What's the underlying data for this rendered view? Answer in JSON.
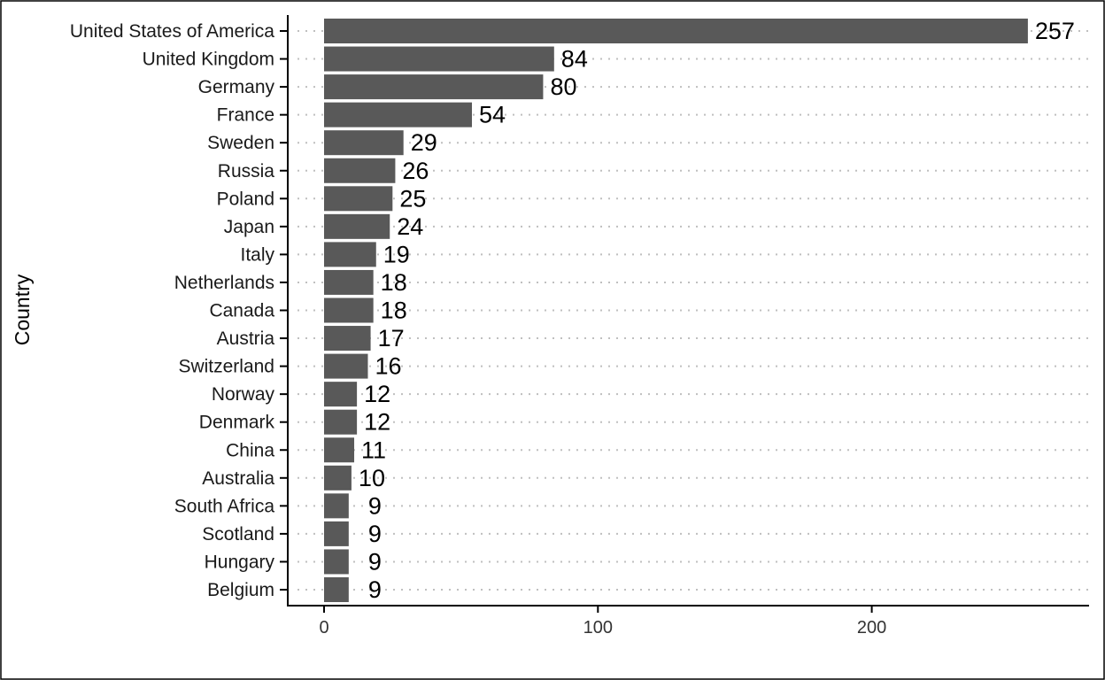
{
  "chart_data": {
    "type": "bar",
    "orientation": "horizontal",
    "ylabel": "Country",
    "xlabel": "",
    "title": "",
    "categories": [
      "United States of America",
      "United Kingdom",
      "Germany",
      "France",
      "Sweden",
      "Russia",
      "Poland",
      "Japan",
      "Italy",
      "Netherlands",
      "Canada",
      "Austria",
      "Switzerland",
      "Norway",
      "Denmark",
      "China",
      "Australia",
      "South Africa",
      "Scotland",
      "Hungary",
      "Belgium"
    ],
    "values": [
      257,
      84,
      80,
      54,
      29,
      26,
      25,
      24,
      19,
      18,
      18,
      17,
      16,
      12,
      12,
      11,
      10,
      9,
      9,
      9,
      9
    ],
    "xlim": [
      0,
      280
    ],
    "x_ticks": [
      0,
      100,
      200
    ],
    "bar_color": "#595959",
    "grid": "dotted horizontal",
    "legend": "none"
  }
}
